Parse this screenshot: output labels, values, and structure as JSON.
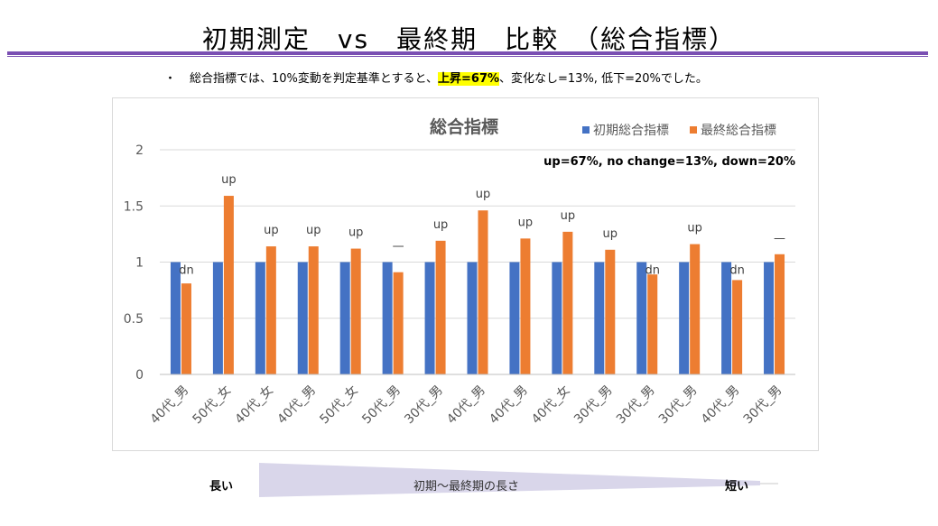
{
  "slide": {
    "title": "初期測定　vs　最終期　比較　（総合指標）",
    "bullet_prefix": "・",
    "bullet_text_before": "総合指標では、10%変動を判定基準とすると、",
    "bullet_highlight": "上昇=67%",
    "bullet_text_after": "、変化なし=13%, 低下=20%でした。"
  },
  "colors": {
    "series1": "#4472c4",
    "series2": "#ed7d31",
    "grid": "#d9d9d9",
    "title_rule": "#7a4fb3",
    "arrow": "#d9d6ea",
    "highlight": "#ffff00"
  },
  "chart_data": {
    "type": "bar",
    "title": "総合指標",
    "annotation": "up=67%, no change=13%, down=20%",
    "legend_position": "top-right",
    "categories": [
      "40代_男",
      "50代_女",
      "40代_女",
      "40代_男",
      "50代_女",
      "50代_男",
      "30代_男",
      "40代_男",
      "40代_男",
      "40代_女",
      "30代_男",
      "30代_男",
      "30代_男",
      "40代_男",
      "30代_男"
    ],
    "series": [
      {
        "name": "初期総合指標",
        "values": [
          1,
          1,
          1,
          1,
          1,
          1,
          1,
          1,
          1,
          1,
          1,
          1,
          1,
          1,
          1
        ]
      },
      {
        "name": "最終総合指標",
        "values": [
          0.81,
          1.59,
          1.14,
          1.14,
          1.12,
          0.91,
          1.19,
          1.46,
          1.21,
          1.27,
          1.11,
          0.89,
          1.16,
          0.84,
          1.07
        ]
      }
    ],
    "bar_labels": [
      "dn",
      "up",
      "up",
      "up",
      "up",
      "—",
      "up",
      "up",
      "up",
      "up",
      "up",
      "dn",
      "up",
      "dn",
      "—"
    ],
    "ylim": [
      0,
      2
    ],
    "yticks": [
      0,
      0.5,
      1,
      1.5,
      2
    ],
    "ytick_labels": [
      "0",
      "0.5",
      "1",
      "1.5",
      "2"
    ],
    "grid": true
  },
  "duration_arrow": {
    "left_label": "長い",
    "center_label": "初期～最終期の長さ",
    "right_label": "短い"
  }
}
